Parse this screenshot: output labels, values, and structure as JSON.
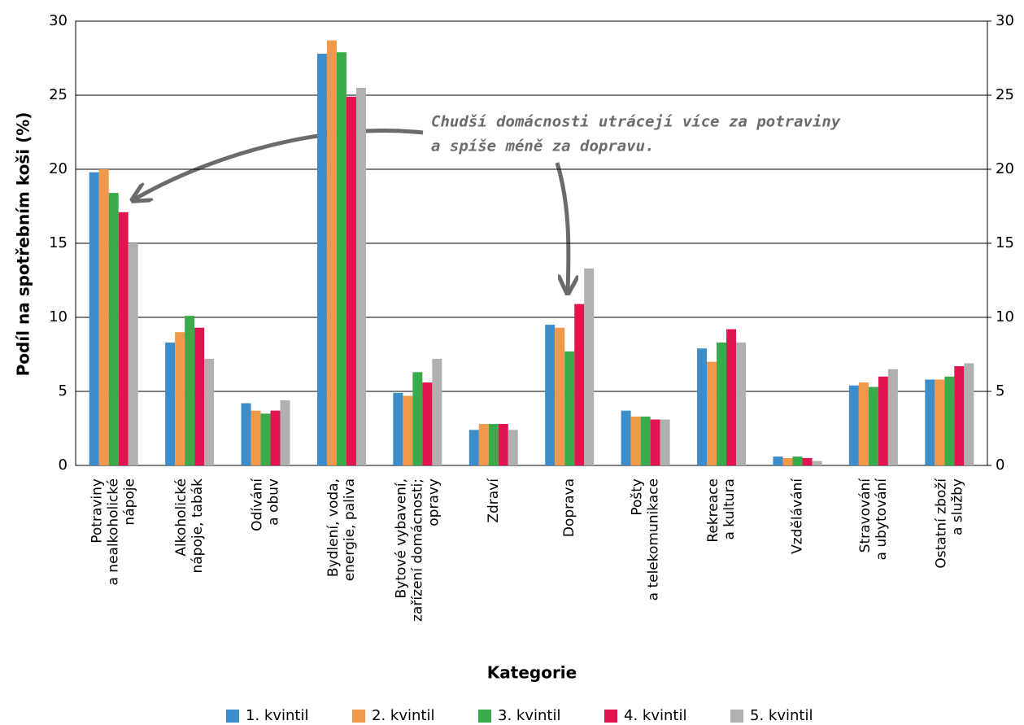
{
  "chart_data": {
    "type": "bar",
    "y_label": "Podíl na spotřebním koši (%)",
    "x_label": "Kategorie",
    "annotation": [
      "Chudší domácnosti utrácejí více za potraviny",
      "a spíše méně za dopravu."
    ],
    "categories": [
      "Potraviny\na nealkoholické\nnápoje",
      "Alkoholické\nnápoje, tabák",
      "Odívání\na obuv",
      "Bydlení, voda,\nenergie, paliva",
      "Bytové vybavení,\nzařízení domácnosti;\nopravy",
      "Zdraví",
      "Doprava",
      "Pošty\na telekomunikace",
      "Rekreace\na kultura",
      "Vzdělávání",
      "Stravování\na ubytování",
      "Ostatní zboží\na služby"
    ],
    "series": [
      {
        "name": "1. kvintil",
        "color": "#3c8dc9",
        "values": [
          19.8,
          8.3,
          4.2,
          27.8,
          4.9,
          2.4,
          9.5,
          3.7,
          7.9,
          0.6,
          5.4,
          5.8
        ]
      },
      {
        "name": "2. kvintil",
        "color": "#f0994a",
        "values": [
          20.0,
          9.0,
          3.7,
          28.7,
          4.7,
          2.8,
          9.3,
          3.3,
          7.0,
          0.5,
          5.6,
          5.8
        ]
      },
      {
        "name": "3. kvintil",
        "color": "#3aab4a",
        "values": [
          18.4,
          10.1,
          3.5,
          27.9,
          6.3,
          2.8,
          7.7,
          3.3,
          8.3,
          0.6,
          5.3,
          6.0
        ]
      },
      {
        "name": "4. kvintil",
        "color": "#e0154f",
        "values": [
          17.1,
          9.3,
          3.7,
          24.9,
          5.6,
          2.8,
          10.9,
          3.1,
          9.2,
          0.5,
          6.0,
          6.7
        ]
      },
      {
        "name": "5. kvintil",
        "color": "#b0b0b0",
        "values": [
          15.0,
          7.2,
          4.4,
          25.5,
          7.2,
          2.4,
          13.3,
          3.1,
          8.3,
          0.3,
          6.5,
          6.9
        ]
      }
    ],
    "ylim": [
      0,
      30
    ],
    "yticks": [
      0,
      5,
      10,
      15,
      20,
      25,
      30
    ],
    "y2lim": [
      0,
      30
    ],
    "y2ticks": [
      0,
      5,
      10,
      15,
      20,
      25,
      30
    ],
    "grid": true
  }
}
